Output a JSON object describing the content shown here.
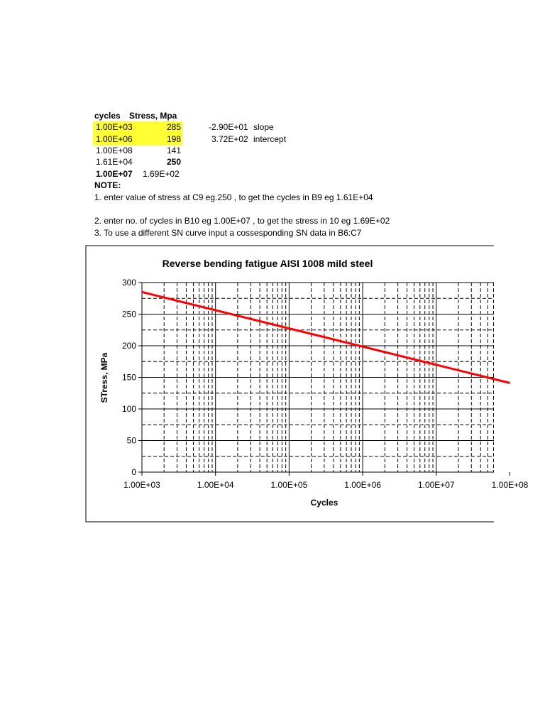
{
  "sheet": {
    "headers": [
      "cycles",
      "Stress, Mpa"
    ],
    "rows": [
      {
        "cycles": "1.00E+03",
        "stress": "285",
        "highlight": true
      },
      {
        "cycles": "1.00E+06",
        "stress": "198",
        "highlight": true
      },
      {
        "cycles": "1.00E+08",
        "stress": "141"
      },
      {
        "cycles": "1.61E+04",
        "stress": "250"
      },
      {
        "cycles": "1.00E+07",
        "stress": "1.69E+02"
      }
    ],
    "slope_value": "-2.90E+01",
    "slope_label": "slope",
    "intercept_value": "3.72E+02",
    "intercept_label": "intercept",
    "highlight_color": "#ffff33",
    "note_title": "NOTE:",
    "notes": [
      "1. enter value of stress at C9 eg.250 , to get the cycles in B9 eg 1.61E+04",
      "2. enter no. of cycles in B10 eg 1.00E+07  , to get the stress in 10 eg 1.69E+02",
      "3. To use a different SN curve input a  cossesponding SN data in B6:C7"
    ]
  },
  "chart_data": {
    "type": "line",
    "title": "Reverse bending fatigue AISI 1008 mild steel",
    "xlabel": "Cycles",
    "ylabel": "STress, MPa",
    "x_scale": "log",
    "xlim": [
      1000,
      100000000
    ],
    "ylim": [
      0,
      300
    ],
    "x_tick_labels": [
      "1.00E+03",
      "1.00E+04",
      "1.00E+05",
      "1.00E+06",
      "1.00E+07",
      "1.00E+08"
    ],
    "y_tick_labels": [
      "0",
      "50",
      "100",
      "150",
      "200",
      "250",
      "300"
    ],
    "grid": "major solid, minor dashed",
    "legend": "none",
    "series": [
      {
        "x": [
          1000,
          100000000
        ],
        "y": [
          285,
          141
        ],
        "color": "#ff0000"
      }
    ]
  }
}
